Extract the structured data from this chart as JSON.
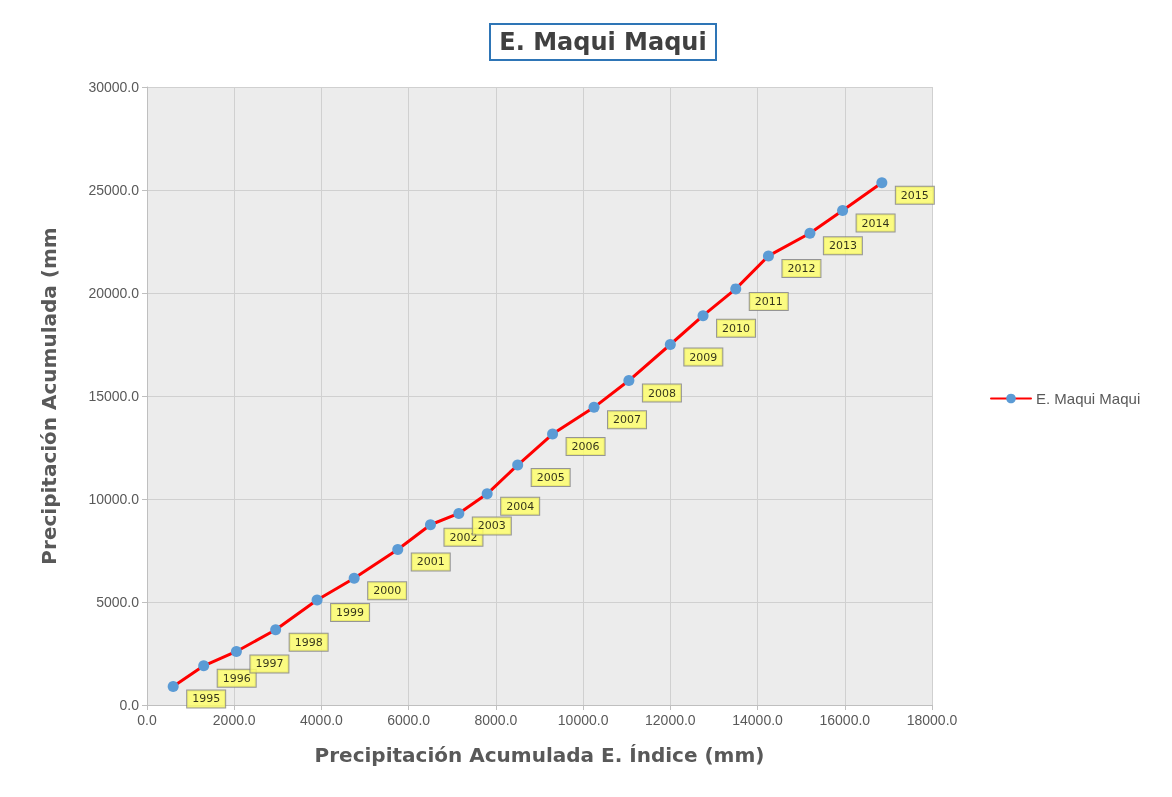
{
  "chart_data": {
    "type": "line",
    "title": "E. Maqui Maqui",
    "xlabel": "Precipitación Acumulada E. Índice (mm)",
    "ylabel": "Precipitación Acumulada (mm",
    "x": [
      600,
      1300,
      2050,
      2950,
      3900,
      4750,
      5750,
      6500,
      7150,
      7800,
      8500,
      9300,
      10250,
      11050,
      12000,
      12750,
      13500,
      14250,
      15200,
      15950,
      16850
    ],
    "series": [
      {
        "name": "E. Maqui Maqui",
        "color": "#ff0000",
        "colors": [
          "#5b9bd5",
          "#5b9bd5",
          "#5b9bd5",
          "#5b9bd5",
          "#5b9bd5",
          "#5b9bd5",
          "#5b9bd5",
          "#5b9bd5",
          "#5b9bd5",
          "#5b9bd5",
          "#5b9bd5",
          "#5b9bd5",
          "#5b9bd5",
          "#5b9bd5",
          "#5b9bd5",
          "#5b9bd5",
          "#5b9bd5",
          "#5b9bd5",
          "#5b9bd5",
          "#5b9bd5",
          "#5b9bd5"
        ],
        "values": [
          900,
          1900,
          2600,
          3650,
          5100,
          6150,
          7550,
          8750,
          9300,
          10250,
          11650,
          13150,
          14450,
          15750,
          17500,
          18900,
          20200,
          21800,
          22900,
          24000,
          25350
        ]
      }
    ],
    "annotations": [
      {
        "text": "1995",
        "x": 600,
        "y": 900
      },
      {
        "text": "1996",
        "x": 1300,
        "y": 1900
      },
      {
        "text": "1997",
        "x": 2050,
        "y": 2600
      },
      {
        "text": "1998",
        "x": 2950,
        "y": 3650
      },
      {
        "text": "1999",
        "x": 3900,
        "y": 5100
      },
      {
        "text": "2000",
        "x": 4750,
        "y": 6150
      },
      {
        "text": "2001",
        "x": 5750,
        "y": 7550
      },
      {
        "text": "2002",
        "x": 6500,
        "y": 8750
      },
      {
        "text": "2003",
        "x": 7150,
        "y": 9300
      },
      {
        "text": "2004",
        "x": 7800,
        "y": 10250
      },
      {
        "text": "2005",
        "x": 8500,
        "y": 11650
      },
      {
        "text": "2006",
        "x": 9300,
        "y": 13150
      },
      {
        "text": "2007",
        "x": 10250,
        "y": 14450
      },
      {
        "text": "2008",
        "x": 11050,
        "y": 15750
      },
      {
        "text": "2009",
        "x": 12000,
        "y": 17500
      },
      {
        "text": "2010",
        "x": 12750,
        "y": 18900
      },
      {
        "text": "2011",
        "x": 13500,
        "y": 20200
      },
      {
        "text": "2012",
        "x": 14250,
        "y": 21800
      },
      {
        "text": "2013",
        "x": 15200,
        "y": 22900
      },
      {
        "text": "2014",
        "x": 15950,
        "y": 24000
      },
      {
        "text": "2015",
        "x": 16850,
        "y": 25350
      }
    ],
    "xlim": [
      0,
      18000
    ],
    "xticks": [
      {
        "value": 0,
        "label": "0.0"
      },
      {
        "value": 2000,
        "label": "2000.0"
      },
      {
        "value": 4000,
        "label": "4000.0"
      },
      {
        "value": 6000,
        "label": "6000.0"
      },
      {
        "value": 8000,
        "label": "8000.0"
      },
      {
        "value": 10000,
        "label": "10000.0"
      },
      {
        "value": 12000,
        "label": "12000.0"
      },
      {
        "value": 14000,
        "label": "14000.0"
      },
      {
        "value": 16000,
        "label": "16000.0"
      },
      {
        "value": 18000,
        "label": "18000.0"
      }
    ],
    "ylim": [
      0,
      30000
    ],
    "yticks": [
      {
        "value": 0,
        "label": "0.0"
      },
      {
        "value": 5000,
        "label": "5000.0"
      },
      {
        "value": 10000,
        "label": "10000.0"
      },
      {
        "value": 15000,
        "label": "15000.0"
      },
      {
        "value": 20000,
        "label": "20000.0"
      },
      {
        "value": 25000,
        "label": "25000.0"
      },
      {
        "value": 30000,
        "label": "30000.0"
      }
    ],
    "grid": true,
    "legend": "right",
    "marker": "circle",
    "line_style": "solid"
  }
}
